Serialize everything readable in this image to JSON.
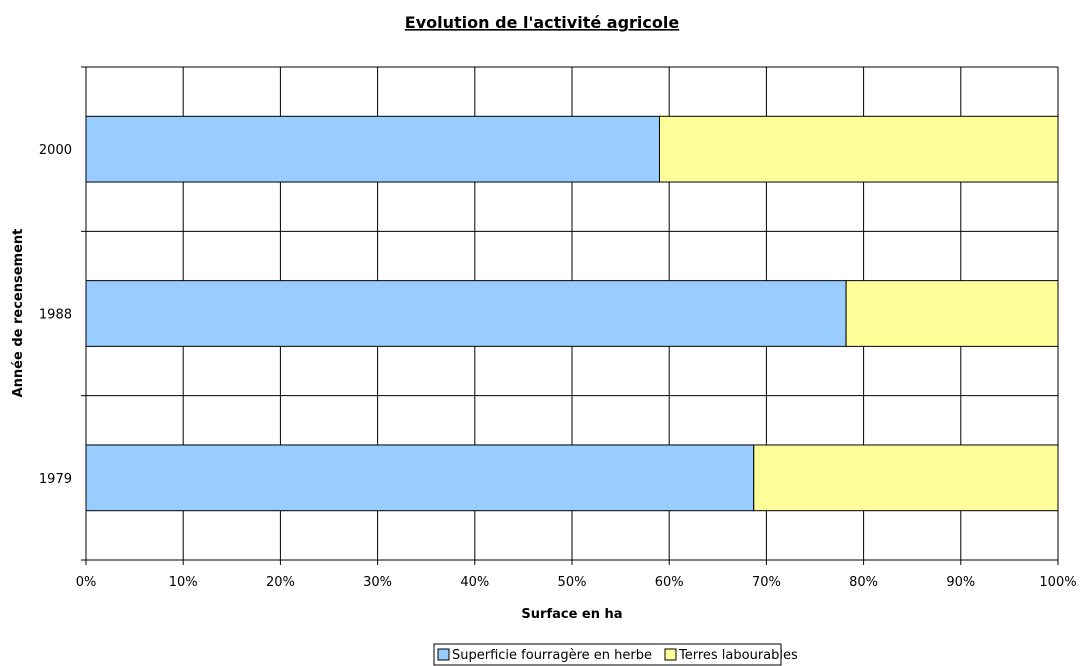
{
  "chart_data": {
    "type": "bar",
    "orientation": "horizontal",
    "stacked": "percent",
    "title": "Evolution de l'activité agricole",
    "xlabel": "Surface en ha",
    "ylabel": "Année de recensement",
    "categories": [
      "1979",
      "1988",
      "2000"
    ],
    "series": [
      {
        "name": "Superficie fourragère en herbe",
        "values": [
          68.7,
          78.2,
          59.0
        ],
        "color": "#99ccff"
      },
      {
        "name": "Terres labourables",
        "values": [
          31.3,
          21.8,
          41.0
        ],
        "color": "#ffff99"
      }
    ],
    "xlim": [
      0,
      100
    ],
    "xticks": [
      "0%",
      "10%",
      "20%",
      "30%",
      "40%",
      "50%",
      "60%",
      "70%",
      "80%",
      "90%",
      "100%"
    ],
    "grid": true,
    "legend_position": "bottom"
  }
}
